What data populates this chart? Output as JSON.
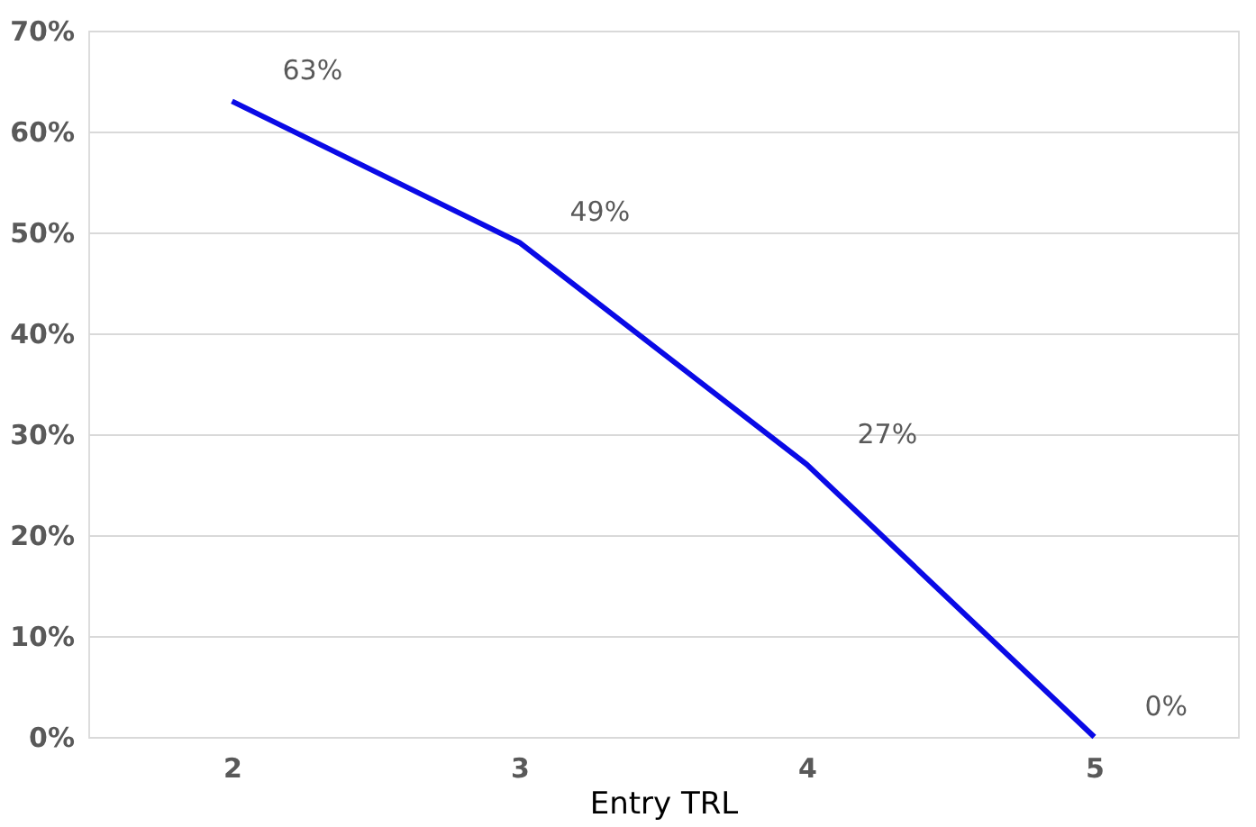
{
  "chart_data": {
    "type": "line",
    "xlabel": "Entry TRL",
    "categories": [
      "2",
      "3",
      "4",
      "5"
    ],
    "series": [
      {
        "color": "#0a0ae6",
        "values": [
          63,
          49,
          27,
          0
        ],
        "value_labels": [
          "63%",
          "49%",
          "27%",
          "0%"
        ]
      }
    ],
    "ylim": [
      0,
      70
    ],
    "yticks": [
      {
        "value": 0,
        "label": "0%"
      },
      {
        "value": 10,
        "label": "10%"
      },
      {
        "value": 20,
        "label": "20%"
      },
      {
        "value": 30,
        "label": "30%"
      },
      {
        "value": 40,
        "label": "40%"
      },
      {
        "value": 50,
        "label": "50%"
      },
      {
        "value": 60,
        "label": "60%"
      },
      {
        "value": 70,
        "label": "70%"
      }
    ],
    "grid": "y",
    "marker": "none",
    "line_style": "solid"
  }
}
